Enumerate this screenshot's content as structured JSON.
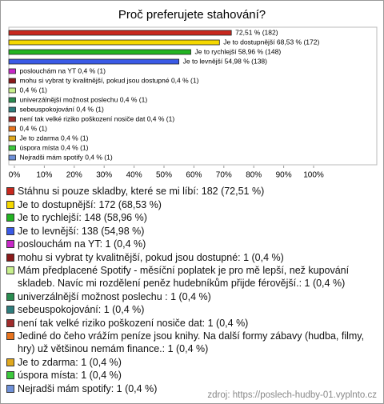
{
  "chart_data": {
    "type": "bar",
    "orientation": "horizontal",
    "title": "Proč preferujete stahování?",
    "categories": [
      "Stáhnu si pouze skladby, které se mi líbí: 182 (72,51 %)",
      "Je to dostupnější: 172 (68,53 %)",
      "Je to rychlejší: 148 (58,96 %)",
      "Je to levnější: 138 (54,98 %)",
      "poslouchám na YT: 1 (0,4 %)",
      "mohu si vybrat ty kvalitnější, pokud jsou dostupné: 1 (0,4 %)",
      "Mám předplacené Spotify - měsíční poplatek je pro mě lepší, než kupování skladeb. Navíc mi rozdělení peněz hudebníkům přijde férovější.: 1 (0,4 %)",
      "univerzálnější možnost poslechu : 1 (0,4 %)",
      "sebeuspokojování: 1 (0,4 %)",
      "není tak velké riziko poškození nosiče dat: 1 (0,4 %)",
      "Jediné do čeho vrážím peníze jsou knihy. Na další formy zábavy (hudba, filmy, hry) už většinou nemám finance.: 1 (0,4 %)",
      "Je to zdarma: 1 (0,4 %)",
      "úspora místa: 1 (0,4 %)",
      "Nejradši mám spotify: 1 (0,4 %)"
    ],
    "values": [
      72.51,
      68.53,
      58.96,
      54.98,
      0.4,
      0.4,
      0.4,
      0.4,
      0.4,
      0.4,
      0.4,
      0.4,
      0.4,
      0.4
    ],
    "value_labels": [
      "72,51 % (182)",
      "Je to dostupnější 68,53 % (172)",
      "Je to rychlejší 58,96 % (148)",
      "Je to levnější 54,98 % (138)",
      "poslouchám na YT 0,4 % (1)",
      "mohu si vybrat ty kvalitnější, pokud jsou dostupné 0,4 % (1)",
      "0,4 % (1)",
      "univerzálnější možnost poslechu  0,4 % (1)",
      "sebeuspokojování 0,4 % (1)",
      "není tak velké riziko poškození nosiče dat 0,4 % (1)",
      "0,4 % (1)",
      "Je to zdarma 0,4 % (1)",
      "úspora místa 0,4 % (1)",
      "Nejradši mám spotify 0,4 % (1)"
    ],
    "colors": [
      "#c8281e",
      "#f5d800",
      "#22b422",
      "#3a5ae6",
      "#c828c8",
      "#8b1a1a",
      "#c8f08c",
      "#2a8c50",
      "#2e7e7e",
      "#a02c2c",
      "#e8741e",
      "#e0a81e",
      "#3cc83c",
      "#6e90d8"
    ],
    "xlim": [
      0,
      100
    ],
    "xticks": [
      {
        "value": 0,
        "label": "0%"
      },
      {
        "value": 10,
        "label": "10%"
      },
      {
        "value": 20,
        "label": "20%"
      },
      {
        "value": 30,
        "label": "30%"
      },
      {
        "value": 40,
        "label": "40%"
      },
      {
        "value": 50,
        "label": "50%"
      },
      {
        "value": 60,
        "label": "60%"
      },
      {
        "value": 70,
        "label": "70%"
      },
      {
        "value": 80,
        "label": "80%"
      },
      {
        "value": 90,
        "label": "90%"
      },
      {
        "value": 100,
        "label": "100%"
      }
    ],
    "source": "zdroj: https://poslech-hudby-01.vyplnto.cz"
  }
}
